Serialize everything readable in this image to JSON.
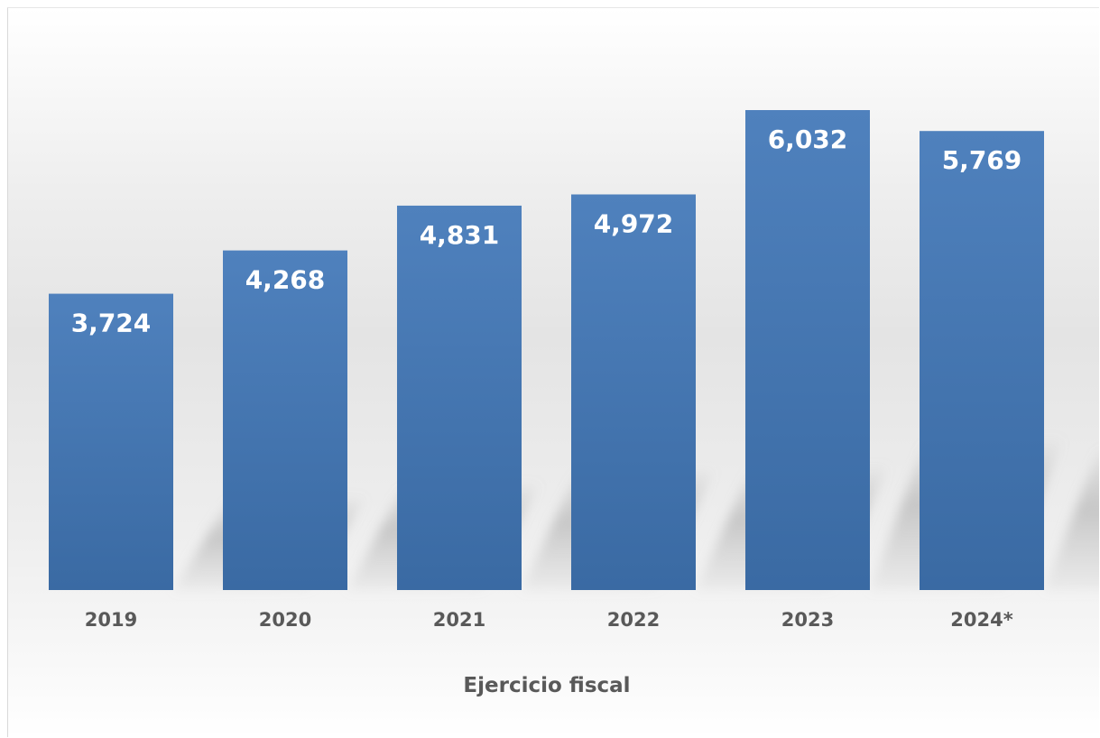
{
  "chart_data": {
    "type": "bar",
    "title": "",
    "xlabel": "Ejercicio fiscal",
    "ylabel": "",
    "categories": [
      "2019",
      "2020",
      "2021",
      "2022",
      "2023",
      "2024*"
    ],
    "values": [
      3724,
      4268,
      4831,
      4972,
      6032,
      5769
    ],
    "value_labels": [
      "3,724",
      "4,268",
      "4,831",
      "4,972",
      "6,032",
      "5,769"
    ],
    "ylim": [
      0,
      7200
    ],
    "grid": false,
    "legend": "none",
    "colors": {
      "bar_top": "#4f81bd",
      "bar_bottom": "#3a6aa3",
      "label_text": "#595959",
      "value_text": "#ffffff"
    }
  }
}
